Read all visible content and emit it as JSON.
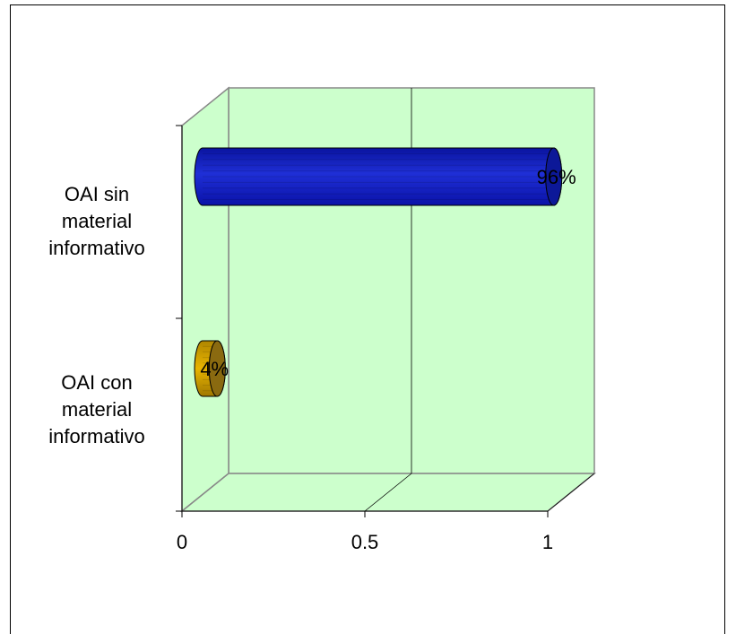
{
  "chart_data": {
    "type": "bar",
    "orientation": "horizontal",
    "style": "3d-cylinder",
    "categories": [
      "OAI sin material informativo",
      "OAI con material informativo"
    ],
    "category_display": [
      "OAI sin\nmaterial\ninformativo",
      "OAI con\nmaterial\ninformativo"
    ],
    "values": [
      0.96,
      0.04
    ],
    "data_labels": [
      "96%",
      "4%"
    ],
    "colors": [
      "#1f2fd6",
      "#e8b400"
    ],
    "xlim": [
      0,
      1
    ],
    "xticks": [
      0,
      0.5,
      1
    ],
    "xtick_labels": [
      "0",
      "0.5",
      "1"
    ],
    "grid": true,
    "legend": "none",
    "plot_background": "#ccffcc"
  }
}
